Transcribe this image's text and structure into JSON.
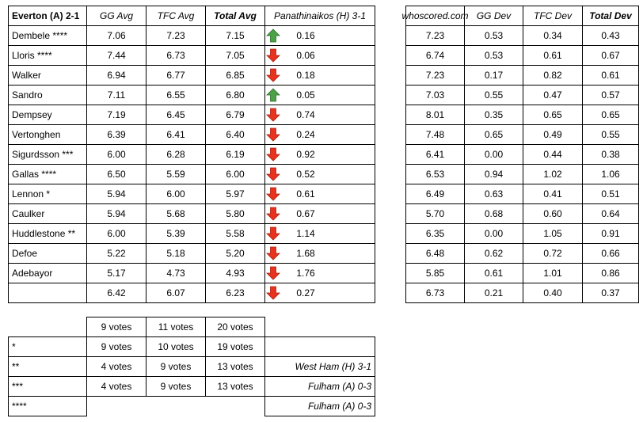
{
  "left_table": {
    "header": [
      "Everton (A) 2-1",
      "GG Avg",
      "TFC Avg",
      "Total Avg",
      "Panathinaikos (H) 3-1"
    ],
    "rows": [
      {
        "name": "Dembele ****",
        "gg": "7.06",
        "tfc": "7.23",
        "total": "7.15",
        "arrow": "up",
        "change": "0.16"
      },
      {
        "name": "Lloris ****",
        "gg": "7.44",
        "tfc": "6.73",
        "total": "7.05",
        "arrow": "down",
        "change": "0.06"
      },
      {
        "name": "Walker",
        "gg": "6.94",
        "tfc": "6.77",
        "total": "6.85",
        "arrow": "down",
        "change": "0.18"
      },
      {
        "name": "Sandro",
        "gg": "7.11",
        "tfc": "6.55",
        "total": "6.80",
        "arrow": "up",
        "change": "0.05"
      },
      {
        "name": "Dempsey",
        "gg": "7.19",
        "tfc": "6.45",
        "total": "6.79",
        "arrow": "down",
        "change": "0.74"
      },
      {
        "name": "Vertonghen",
        "gg": "6.39",
        "tfc": "6.41",
        "total": "6.40",
        "arrow": "down",
        "change": "0.24"
      },
      {
        "name": "Sigurdsson ***",
        "gg": "6.00",
        "tfc": "6.28",
        "total": "6.19",
        "arrow": "down",
        "change": "0.92"
      },
      {
        "name": "Gallas ****",
        "gg": "6.50",
        "tfc": "5.59",
        "total": "6.00",
        "arrow": "down",
        "change": "0.52"
      },
      {
        "name": "Lennon *",
        "gg": "5.94",
        "tfc": "6.00",
        "total": "5.97",
        "arrow": "down",
        "change": "0.61"
      },
      {
        "name": "Caulker",
        "gg": "5.94",
        "tfc": "5.68",
        "total": "5.80",
        "arrow": "down",
        "change": "0.67"
      },
      {
        "name": "Huddlestone **",
        "gg": "6.00",
        "tfc": "5.39",
        "total": "5.58",
        "arrow": "down",
        "change": "1.14"
      },
      {
        "name": "Defoe",
        "gg": "5.22",
        "tfc": "5.18",
        "total": "5.20",
        "arrow": "down",
        "change": "1.68"
      },
      {
        "name": "Adebayor",
        "gg": "5.17",
        "tfc": "4.73",
        "total": "4.93",
        "arrow": "down",
        "change": "1.76"
      },
      {
        "name": null,
        "gg": "6.42",
        "tfc": "6.07",
        "total": "6.23",
        "arrow": "down",
        "change": "0.27"
      }
    ]
  },
  "right_table": {
    "header": [
      "whoscored.com",
      "GG Dev",
      "TFC Dev",
      "Total Dev"
    ],
    "rows": [
      [
        "7.23",
        "0.53",
        "0.34",
        "0.43"
      ],
      [
        "6.74",
        "0.53",
        "0.61",
        "0.67"
      ],
      [
        "7.23",
        "0.17",
        "0.82",
        "0.61"
      ],
      [
        "7.03",
        "0.55",
        "0.47",
        "0.57"
      ],
      [
        "8.01",
        "0.35",
        "0.65",
        "0.65"
      ],
      [
        "7.48",
        "0.65",
        "0.49",
        "0.55"
      ],
      [
        "6.41",
        "0.00",
        "0.44",
        "0.38"
      ],
      [
        "6.53",
        "0.94",
        "1.02",
        "1.06"
      ],
      [
        "6.49",
        "0.63",
        "0.41",
        "0.51"
      ],
      [
        "5.70",
        "0.68",
        "0.60",
        "0.64"
      ],
      [
        "6.35",
        "0.00",
        "1.05",
        "0.91"
      ],
      [
        "6.48",
        "0.62",
        "0.72",
        "0.66"
      ],
      [
        "5.85",
        "0.61",
        "1.01",
        "0.86"
      ],
      [
        "6.73",
        "0.21",
        "0.40",
        "0.37"
      ]
    ]
  },
  "votes_table": {
    "rows": [
      [
        null,
        "9 votes",
        "11 votes",
        "20 votes",
        null
      ],
      [
        "*",
        "9 votes",
        "10 votes",
        "19 votes",
        null
      ],
      [
        "**",
        "4 votes",
        "9 votes",
        "13 votes",
        "West Ham (H) 3-1"
      ],
      [
        "***",
        "4 votes",
        "9 votes",
        "13 votes",
        "Fulham (A) 0-3"
      ],
      [
        "****",
        null,
        null,
        null,
        "Fulham (A) 0-3"
      ]
    ]
  }
}
